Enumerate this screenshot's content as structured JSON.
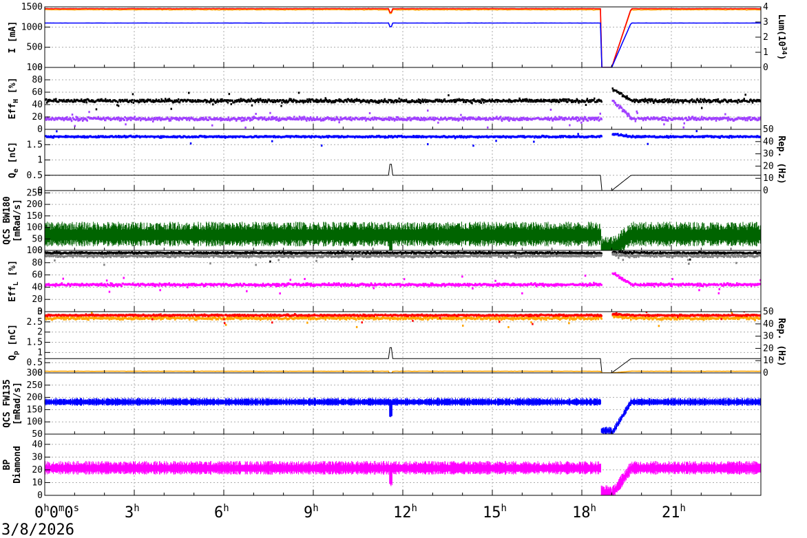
{
  "chart_data": {
    "type": "line",
    "x_axis": {
      "range_hours": [
        0,
        24
      ],
      "ticks": [
        {
          "h": 0,
          "label": "0",
          "sup": "h",
          "extra": "0",
          "extra_sup": "m",
          "extra2": "0",
          "extra2_sup": "s"
        },
        {
          "h": 3,
          "label": "3",
          "sup": "h"
        },
        {
          "h": 6,
          "label": "6",
          "sup": "h"
        },
        {
          "h": 9,
          "label": "9",
          "sup": "h"
        },
        {
          "h": 12,
          "label": "12",
          "sup": "h"
        },
        {
          "h": 15,
          "label": "15",
          "sup": "h"
        },
        {
          "h": 18,
          "label": "18",
          "sup": "h"
        },
        {
          "h": 21,
          "label": "21",
          "sup": "h"
        }
      ],
      "date": "3/8/2026"
    },
    "panels": [
      {
        "id": "current",
        "ylabel": "I [mA]",
        "ylim": [
          0,
          1500
        ],
        "yticks": [
          "0",
          "500",
          "1000",
          "1500"
        ],
        "right_axis": {
          "label": "Lum(10",
          "label_sup": "34",
          "label_end": ")",
          "ylim": [
            0,
            4
          ],
          "ticks": [
            "0",
            "1",
            "2",
            "3",
            "4"
          ]
        },
        "series": [
          {
            "color": "#ffa500",
            "kind": "line",
            "level": 1430,
            "noise": 12
          },
          {
            "color": "#ff0000",
            "kind": "line",
            "level": 1455,
            "noise": 6
          },
          {
            "color": "#0000ff",
            "kind": "line",
            "level": 1100,
            "noise": 3
          }
        ]
      },
      {
        "id": "effh",
        "ylabel": "Eff",
        "ylabel_sub": "H",
        "ylabel_end": " [%]",
        "ylim": [
          0,
          100
        ],
        "yticks": [
          "0",
          "20",
          "40",
          "60",
          "80",
          "100"
        ],
        "series": [
          {
            "color": "#000000",
            "kind": "scatter",
            "level": 46,
            "noise": 4
          },
          {
            "color": "#a040ff",
            "kind": "scatter",
            "level": 17,
            "noise": 4
          }
        ]
      },
      {
        "id": "qe",
        "ylabel": "Q",
        "ylabel_sub": "e",
        "ylabel_end": " [nC]",
        "ylim": [
          0,
          2
        ],
        "yticks": [
          "0",
          "0.5",
          "1",
          "1.5"
        ],
        "right_axis": {
          "label": "Rep. (Hz)",
          "ylim": [
            0,
            50
          ],
          "ticks": [
            "0",
            "10",
            "20",
            "30",
            "40",
            "50"
          ]
        },
        "series": [
          {
            "color": "#0000ff",
            "kind": "scatter",
            "level": 1.76,
            "noise": 0.04
          },
          {
            "color": "#000000",
            "kind": "step",
            "level": 0.5,
            "noise": 0
          }
        ]
      },
      {
        "id": "bw180",
        "ylabel": "QCS BW180",
        "ylabel2": "[mRad/s]",
        "ylim": [
          0,
          260
        ],
        "yticks": [
          "0",
          "50",
          "100",
          "150",
          "200",
          "250"
        ],
        "series": [
          {
            "color": "#006400",
            "kind": "noise",
            "level": 65,
            "noise": 40
          }
        ]
      },
      {
        "id": "effl",
        "ylabel": "Eff",
        "ylabel_sub": "L",
        "ylabel_end": " [%]",
        "ylim": [
          0,
          100
        ],
        "yticks": [
          "0",
          "20",
          "40",
          "60",
          "80",
          "100"
        ],
        "series": [
          {
            "color": "#000000",
            "kind": "scatter",
            "level": 96,
            "noise": 2
          },
          {
            "color": "#808080",
            "kind": "scatter",
            "level": 91,
            "noise": 3
          },
          {
            "color": "#ff00ff",
            "kind": "scatter",
            "level": 44,
            "noise": 3
          }
        ]
      },
      {
        "id": "qp",
        "ylabel": "Q",
        "ylabel_sub": "p",
        "ylabel_end": " [nC]",
        "ylim": [
          0,
          3
        ],
        "yticks": [
          "0",
          "0.5",
          "1",
          "1.5",
          "2",
          "2.5",
          "3"
        ],
        "right_axis": {
          "label": "Rep. (Hz)",
          "ylim": [
            0,
            50
          ],
          "ticks": [
            "0",
            "10",
            "20",
            "30",
            "40",
            "50"
          ]
        },
        "series": [
          {
            "color": "#ffa500",
            "kind": "scatter",
            "level": 2.68,
            "noise": 0.1
          },
          {
            "color": "#ff0000",
            "kind": "scatter",
            "level": 2.82,
            "noise": 0.05
          },
          {
            "color": "#000000",
            "kind": "step",
            "level": 0.7,
            "noise": 0
          },
          {
            "color": "#ffa500",
            "kind": "line",
            "level": 0.08,
            "noise": 0.01
          }
        ]
      },
      {
        "id": "fw135",
        "ylabel": "QCS FW135",
        "ylabel2": "[mRad/s]",
        "ylim": [
          50,
          300
        ],
        "yticks": [
          "50",
          "100",
          "150",
          "200",
          "250",
          "300"
        ],
        "series": [
          {
            "color": "#0000ff",
            "kind": "noise",
            "level": 180,
            "noise": 12
          }
        ]
      },
      {
        "id": "bp",
        "ylabel": "BP",
        "ylabel2": "Diamond",
        "ylim": [
          0,
          48
        ],
        "yticks": [
          "0",
          "10",
          "20",
          "30",
          "40"
        ],
        "series": [
          {
            "color": "#ff00ff",
            "kind": "noise",
            "level": 21,
            "noise": 4
          }
        ]
      }
    ],
    "events_hours": {
      "dip": 11.6,
      "abort_start": 18.65,
      "abort_end": 19.0,
      "recovery_end": 19.65
    },
    "grid": true
  }
}
